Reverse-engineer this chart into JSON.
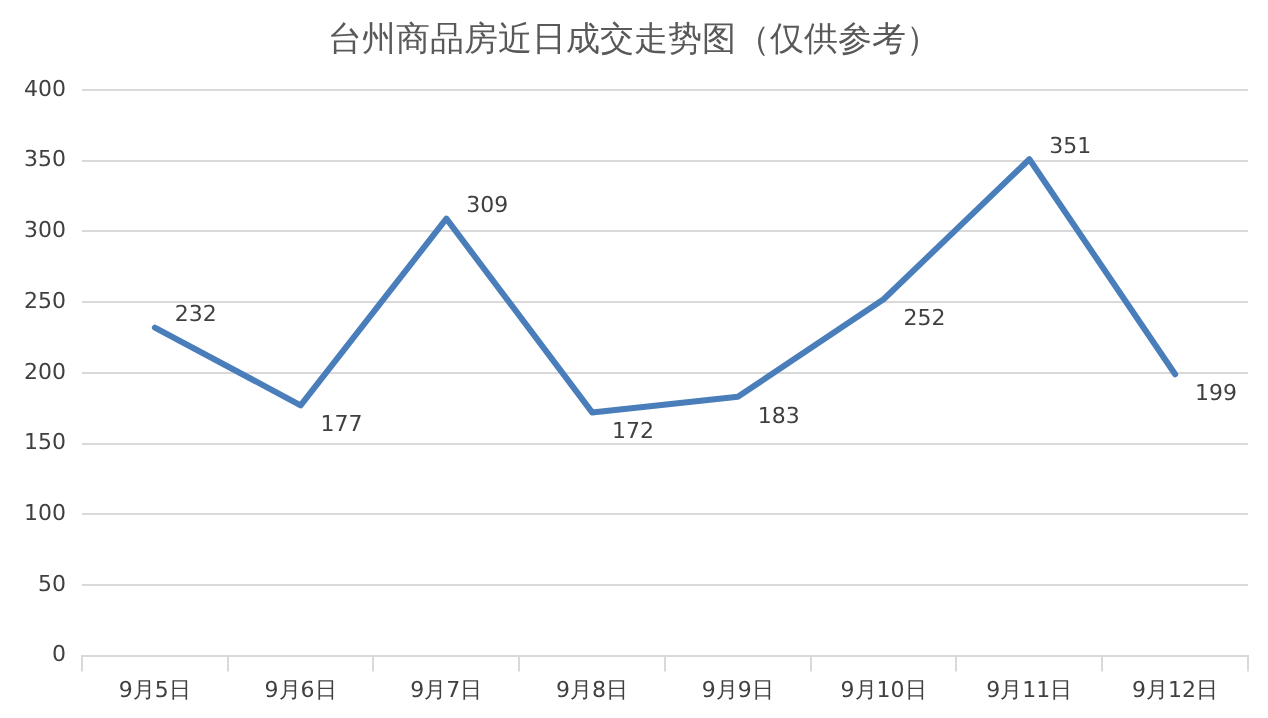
{
  "chart_data": {
    "type": "line",
    "title": "台州商品房近日成交走势图（仅供参考）",
    "categories": [
      "9月5日",
      "9月6日",
      "9月7日",
      "9月8日",
      "9月9日",
      "9月10日",
      "9月11日",
      "9月12日"
    ],
    "series": [
      {
        "color": "#4a7ebb",
        "values": [
          232,
          177,
          309,
          172,
          183,
          252,
          351,
          199
        ]
      }
    ],
    "ylim": [
      0,
      400
    ],
    "yticks": [
      0,
      50,
      100,
      150,
      200,
      250,
      300,
      350,
      400
    ],
    "grid": "y",
    "legend": false,
    "marker": "none",
    "line_style": "solid",
    "data_labels": true
  }
}
